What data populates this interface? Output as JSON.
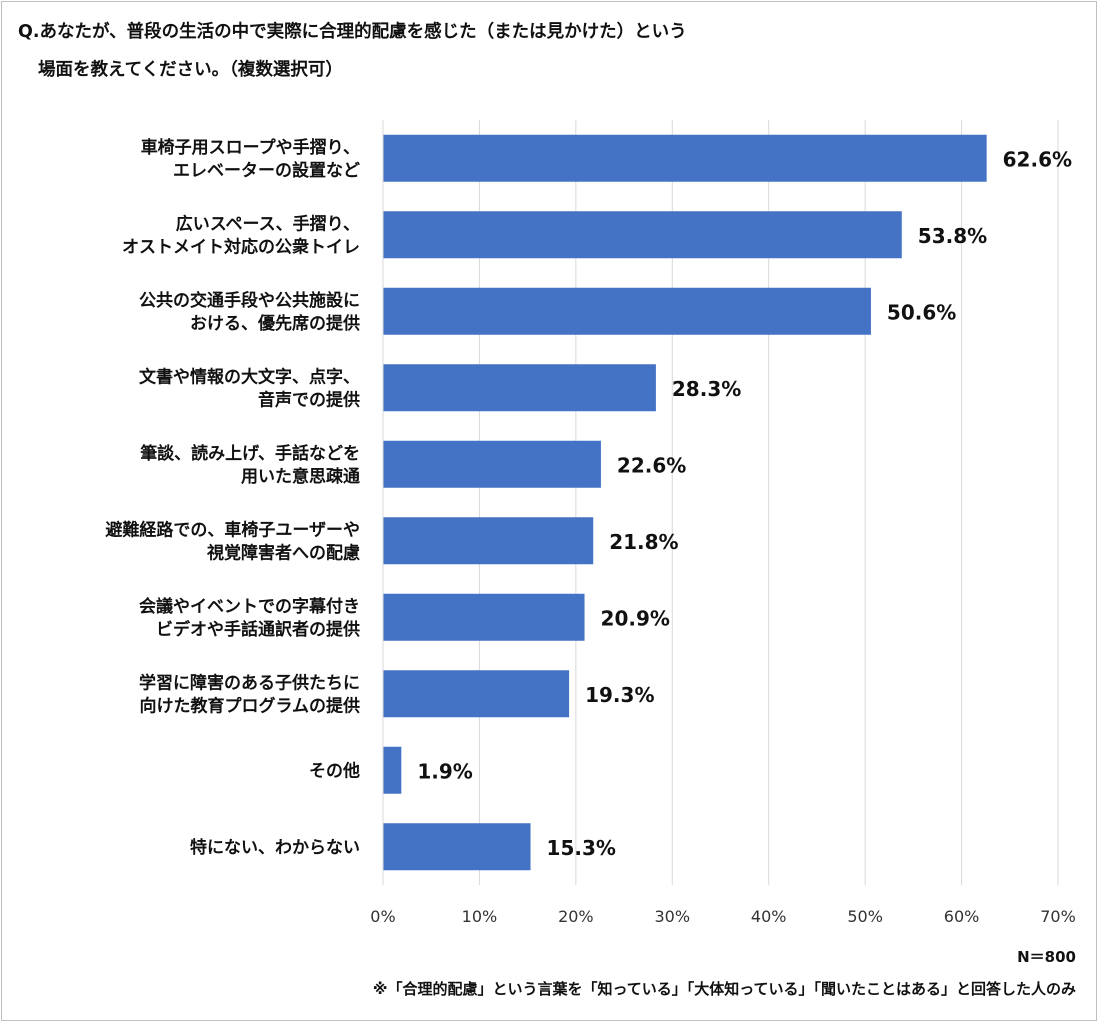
{
  "title_line1": "Q.あなたが、普段の生活の中で実際に合理的配慮を感じた（または見かけた）という",
  "title_line2": "場面を教えてください。（複数選択可）",
  "sample_size": "N＝800",
  "footnote": "※「合理的配慮」という言葉を「知っている」「大体知っている」「聞いたことはある」と回答した人のみ",
  "chart_data": {
    "type": "bar",
    "orientation": "horizontal",
    "bar_color": "#4472C4",
    "grid": true,
    "xlim": [
      0,
      70
    ],
    "xticks": [
      "0%",
      "10%",
      "20%",
      "30%",
      "40%",
      "50%",
      "60%",
      "70%"
    ],
    "categories": [
      [
        "車椅子用スロープや手摺り、",
        "エレベーターの設置など"
      ],
      [
        "広いスペース、手摺り、",
        "オストメイト対応の公衆トイレ"
      ],
      [
        "公共の交通手段や公共施設に",
        "おける、優先席の提供"
      ],
      [
        "文書や情報の大文字、点字、",
        "音声での提供"
      ],
      [
        "筆談、読み上げ、手話などを",
        "用いた意思疎通"
      ],
      [
        "避難経路での、車椅子ユーザーや",
        "視覚障害者への配慮"
      ],
      [
        "会議やイベントでの字幕付き",
        "ビデオや手話通訳者の提供"
      ],
      [
        "学習に障害のある子供たちに",
        "向けた教育プログラムの提供"
      ],
      [
        "その他"
      ],
      [
        "特にない、わからない"
      ]
    ],
    "values": [
      62.6,
      53.8,
      50.6,
      28.3,
      22.6,
      21.8,
      20.9,
      19.3,
      1.9,
      15.3
    ],
    "value_labels": [
      "62.6%",
      "53.8%",
      "50.6%",
      "28.3%",
      "22.6%",
      "21.8%",
      "20.9%",
      "19.3%",
      "1.9%",
      "15.3%"
    ]
  }
}
